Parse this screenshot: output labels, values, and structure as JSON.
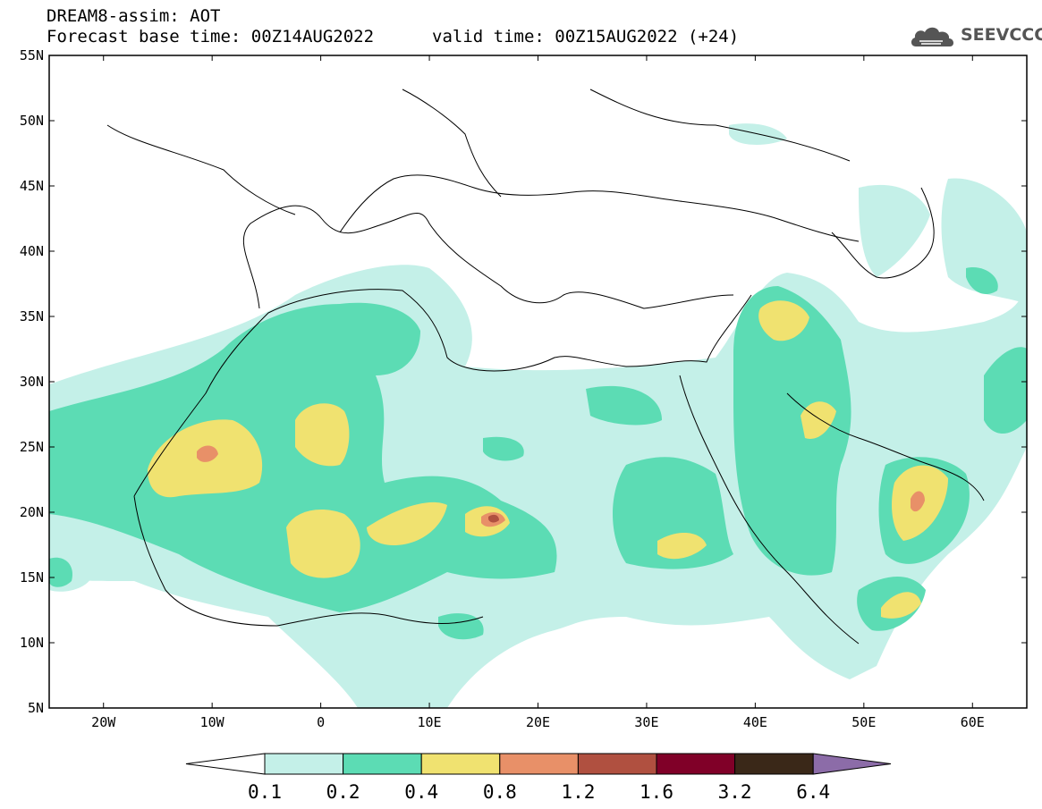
{
  "header": {
    "title": "DREAM8-assim: AOT",
    "base_time": "Forecast base time: 00Z14AUG2022",
    "valid_time": "valid time: 00Z15AUG2022 (+24)"
  },
  "logo": {
    "text": "SEEVCCC",
    "icon": "cloud-icon"
  },
  "map": {
    "lat_labels": [
      "55N",
      "50N",
      "45N",
      "40N",
      "35N",
      "30N",
      "25N",
      "20N",
      "15N",
      "10N",
      "5N"
    ],
    "lon_labels": [
      "20W",
      "10W",
      "0",
      "10E",
      "20E",
      "30E",
      "40E",
      "50E",
      "60E"
    ],
    "lat_range": [
      5,
      55
    ],
    "lon_range": [
      -25,
      65
    ]
  },
  "colorbar": {
    "labels": [
      "0.1",
      "0.2",
      "0.4",
      "0.8",
      "1.2",
      "1.6",
      "3.2",
      "6.4"
    ],
    "colors": [
      "#ffffff",
      "#c4f0e8",
      "#5cdcb4",
      "#f0e270",
      "#e89068",
      "#b05040",
      "#800028",
      "#3a2818",
      "#8c6ca8"
    ]
  }
}
